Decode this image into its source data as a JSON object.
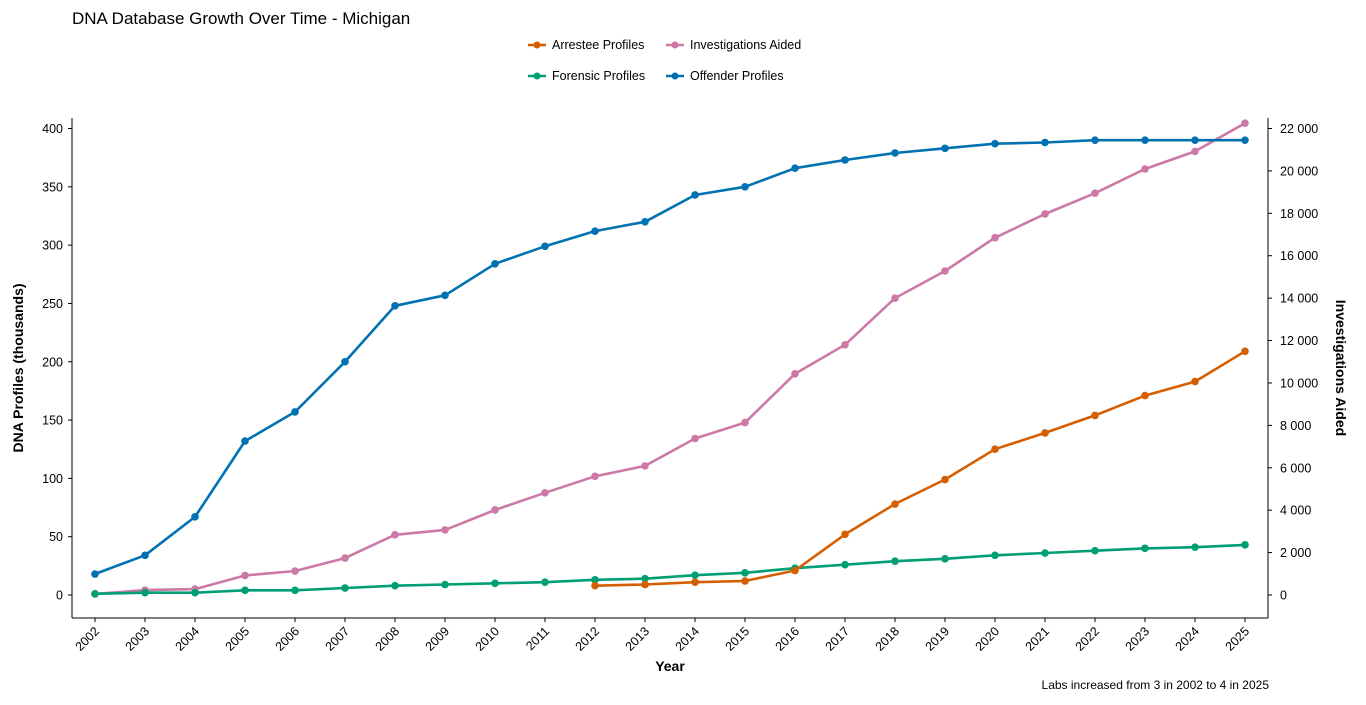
{
  "chart_data": {
    "type": "line",
    "title": "DNA Database Growth Over Time - Michigan",
    "xlabel": "Year",
    "ylabel": "DNA Profiles (thousands)",
    "y2label": "Investigations Aided",
    "caption": "Labs increased from 3 in 2002 to 4 in 2025",
    "x": [
      "2002",
      "2003",
      "2004",
      "2005",
      "2006",
      "2007",
      "2008",
      "2009",
      "2010",
      "2011",
      "2012",
      "2013",
      "2014",
      "2015",
      "2016",
      "2017",
      "2018",
      "2019",
      "2020",
      "2021",
      "2022",
      "2023",
      "2024",
      "2025"
    ],
    "ylim": [
      0,
      400
    ],
    "y_ticks": [
      0,
      50,
      100,
      150,
      200,
      250,
      300,
      350,
      400
    ],
    "y2lim": [
      0,
      22000
    ],
    "y2_ticks": [
      0,
      2000,
      4000,
      6000,
      8000,
      10000,
      12000,
      14000,
      16000,
      18000,
      20000,
      22000
    ],
    "y2_tick_labels": [
      "0",
      "2 000",
      "4 000",
      "6 000",
      "8 000",
      "10 000",
      "12 000",
      "14 000",
      "16 000",
      "18 000",
      "20 000",
      "22 000"
    ],
    "grid": false,
    "legend_position": "top-center",
    "series": [
      {
        "name": "Arrestee Profiles",
        "axis": "left",
        "color": "#D55E00",
        "values": [
          null,
          null,
          null,
          null,
          null,
          null,
          null,
          null,
          null,
          null,
          8,
          9,
          11,
          12,
          21,
          52,
          78,
          99,
          125,
          139,
          154,
          171,
          183,
          209
        ]
      },
      {
        "name": "Investigations Aided",
        "axis": "right",
        "color": "#CC79A7",
        "values": [
          50,
          230,
          280,
          920,
          1130,
          1740,
          2840,
          3070,
          4010,
          4820,
          5600,
          6090,
          7380,
          8130,
          10430,
          11800,
          14000,
          15280,
          16850,
          17970,
          18950,
          20090,
          20920,
          22250
        ]
      },
      {
        "name": "Forensic Profiles",
        "axis": "left",
        "color": "#009E73",
        "values": [
          1,
          2,
          2,
          4,
          4,
          6,
          8,
          9,
          10,
          11,
          13,
          14,
          17,
          19,
          23,
          26,
          29,
          31,
          34,
          36,
          38,
          40,
          41,
          43
        ]
      },
      {
        "name": "Offender Profiles",
        "axis": "left",
        "color": "#0072B2",
        "values": [
          18,
          34,
          67,
          132,
          157,
          200,
          248,
          257,
          284,
          299,
          312,
          320,
          343,
          350,
          366,
          373,
          379,
          383,
          387,
          388,
          390,
          390,
          390,
          390
        ]
      }
    ]
  }
}
